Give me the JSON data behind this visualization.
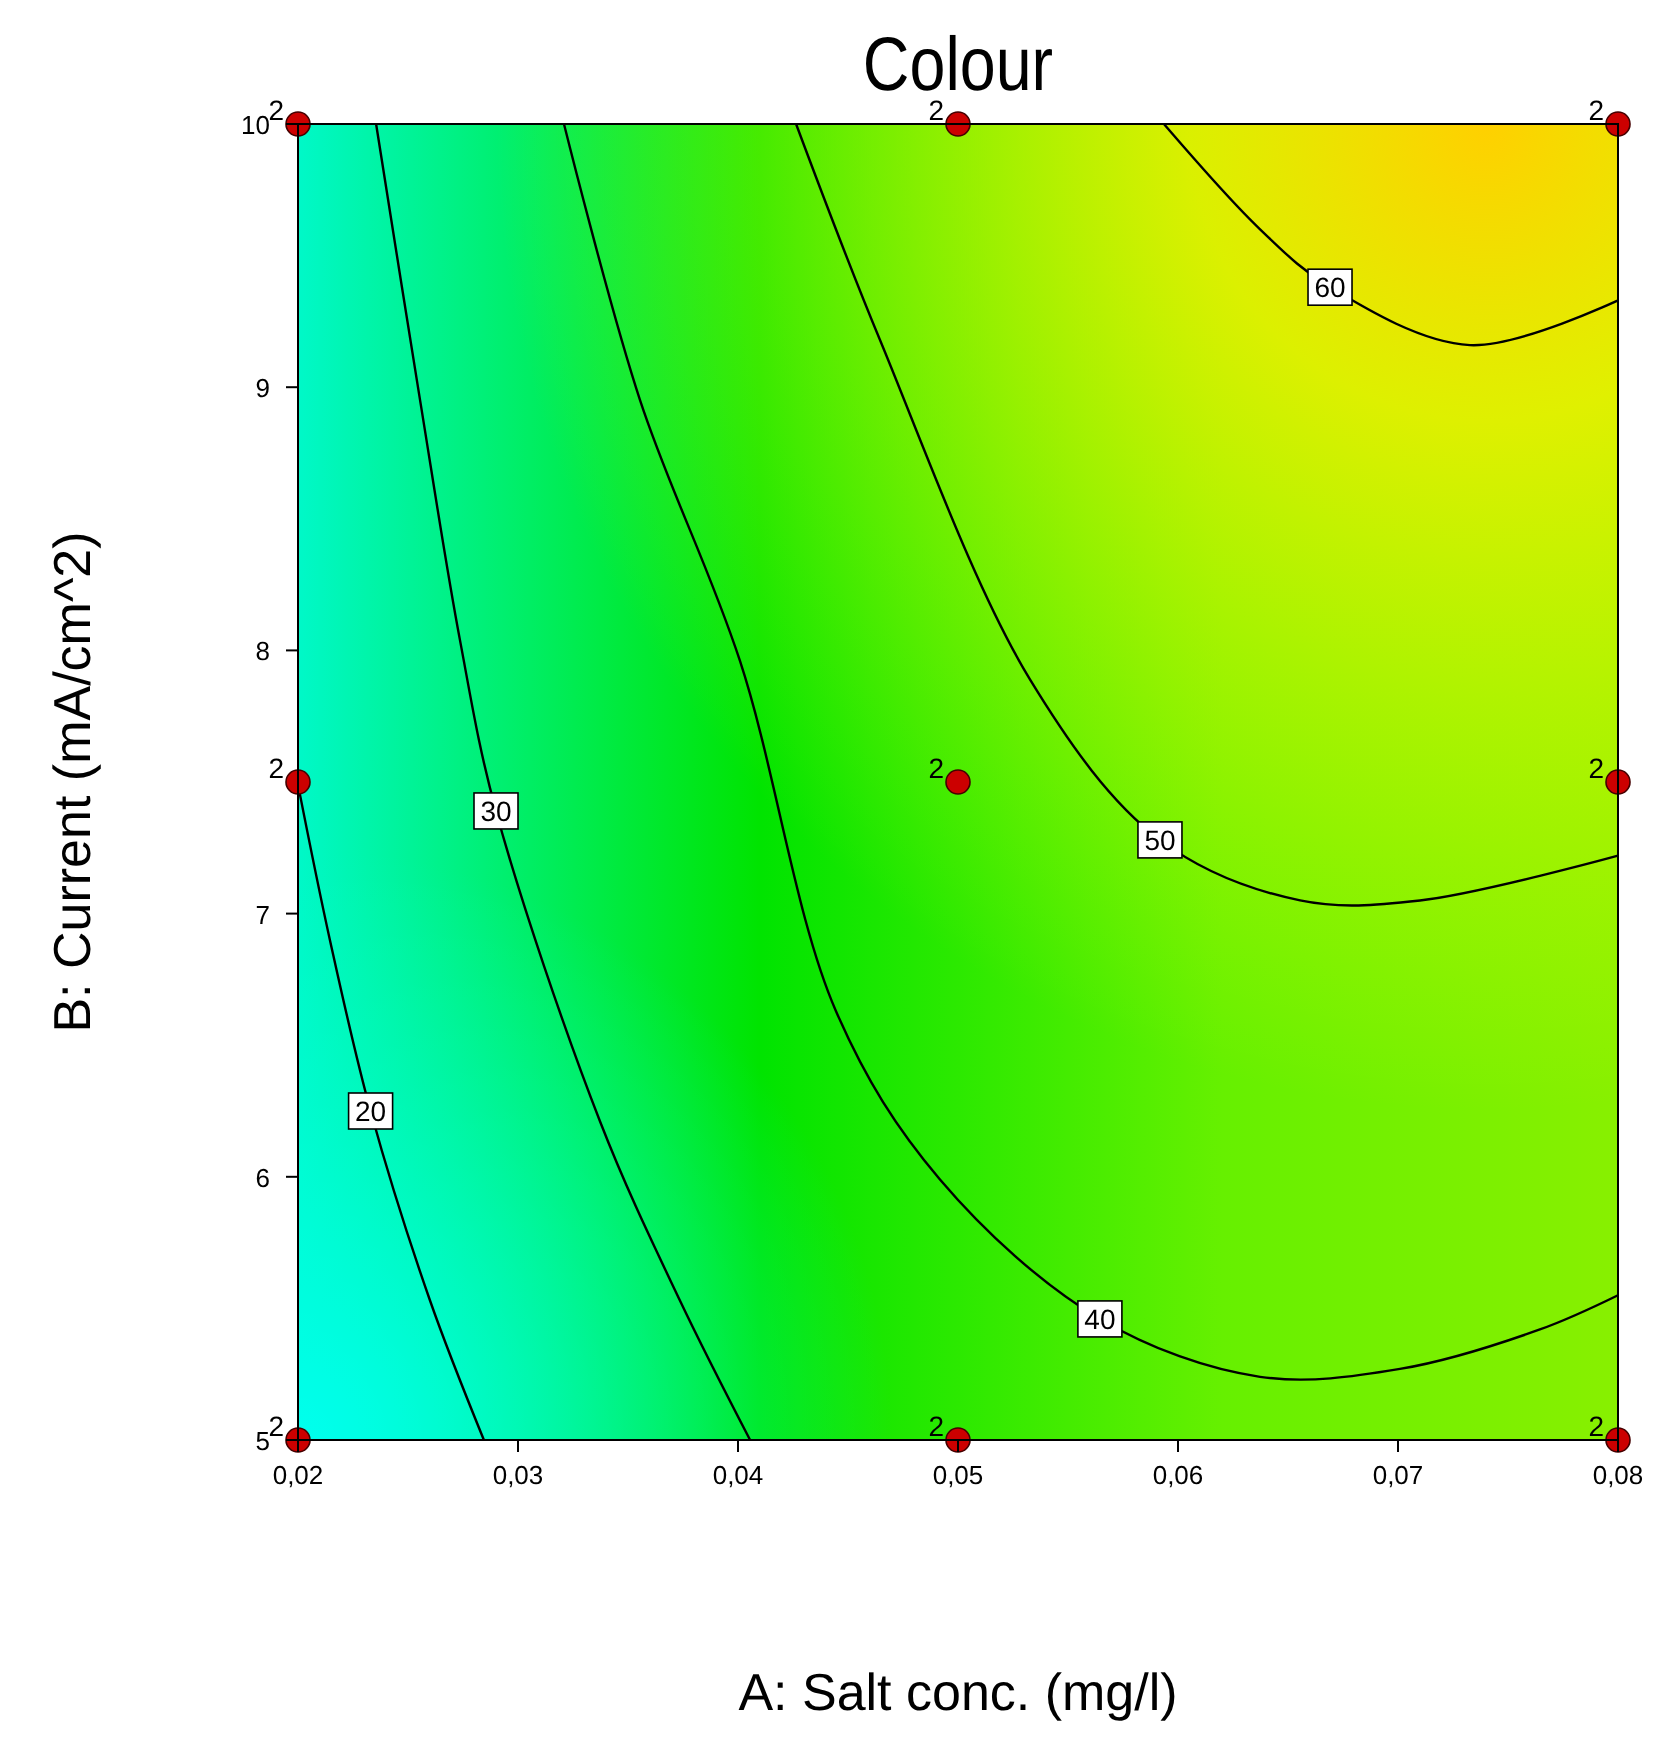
{
  "chart_data": {
    "type": "line",
    "title": "Colour",
    "xlabel": "A: Salt conc. (mg/l)",
    "ylabel": "B: Current  (mA/cm^2)",
    "xlim": [
      0.02,
      0.08
    ],
    "ylim": [
      5,
      10
    ],
    "xticks": [
      {
        "value": 0.02,
        "label": "0,02"
      },
      {
        "value": 0.03,
        "label": "0,03"
      },
      {
        "value": 0.04,
        "label": "0,04"
      },
      {
        "value": 0.05,
        "label": "0,05"
      },
      {
        "value": 0.06,
        "label": "0,06"
      },
      {
        "value": 0.07,
        "label": "0,07"
      },
      {
        "value": 0.08,
        "label": "0,08"
      }
    ],
    "yticks": [
      5,
      6,
      7,
      8,
      9,
      10
    ],
    "grid": false,
    "legend": false,
    "line_style": "solid",
    "series": [
      {
        "name": "20",
        "color": "#000000",
        "x": [
          0.02,
          0.02145,
          0.0233,
          0.026,
          0.02845
        ],
        "values": [
          7.49,
          6.9,
          6.25,
          5.53,
          5
        ]
      },
      {
        "name": "30",
        "color": "#000000",
        "x": [
          0.02355,
          0.02555,
          0.02736,
          0.029,
          0.03373,
          0.03736,
          0.04055
        ],
        "values": [
          10,
          8.95,
          8.04,
          7.39,
          6.21,
          5.53,
          5
        ]
      },
      {
        "name": "40",
        "color": "#000000",
        "x": [
          0.03209,
          0.03555,
          0.04009,
          0.04445,
          0.04918,
          0.05645,
          0.06373,
          0.07009,
          0.07645,
          0.08
        ],
        "values": [
          10,
          8.95,
          7.96,
          6.63,
          5.99,
          5.46,
          5.24,
          5.27,
          5.42,
          5.55
        ]
      },
      {
        "name": "50",
        "color": "#000000",
        "x": [
          0.04264,
          0.04645,
          0.05327,
          0.05918,
          0.06555,
          0.071,
          0.08
        ],
        "values": [
          10,
          9.18,
          7.89,
          7.28,
          7.05,
          7.05,
          7.22
        ]
      },
      {
        "name": "60",
        "color": "#000000",
        "x": [
          0.05936,
          0.06373,
          0.06691,
          0.07327,
          0.08
        ],
        "values": [
          10,
          9.6,
          9.38,
          9.16,
          9.33
        ]
      },
      {
        "type": "scatter",
        "marker": "circle",
        "color": "#cc0000",
        "x": [
          0.02,
          0.05,
          0.08,
          0.02,
          0.05,
          0.08,
          0.02,
          0.05,
          0.08
        ],
        "values": [
          10,
          10,
          10,
          7.5,
          7.5,
          7.5,
          5,
          5,
          5
        ]
      }
    ],
    "annotations": [
      {
        "text": "2",
        "x": 0.02,
        "y": 10
      },
      {
        "text": "2",
        "x": 0.05,
        "y": 10
      },
      {
        "text": "2",
        "x": 0.08,
        "y": 10
      },
      {
        "text": "2",
        "x": 0.02,
        "y": 7.5
      },
      {
        "text": "2",
        "x": 0.05,
        "y": 7.5
      },
      {
        "text": "2",
        "x": 0.08,
        "y": 7.5
      },
      {
        "text": "2",
        "x": 0.02,
        "y": 5
      },
      {
        "text": "2",
        "x": 0.05,
        "y": 5
      },
      {
        "text": "2",
        "x": 0.08,
        "y": 5
      }
    ]
  }
}
